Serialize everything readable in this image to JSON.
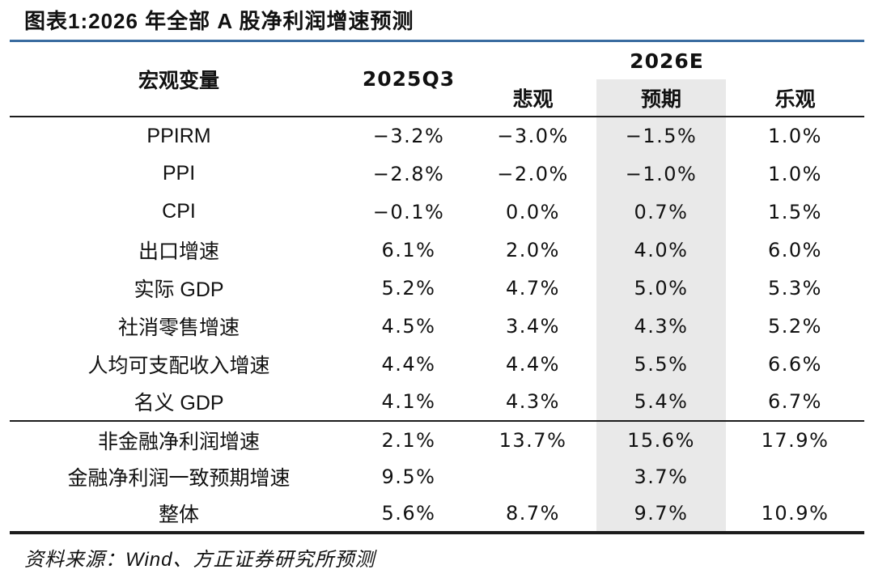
{
  "figure": {
    "title": "图表1:2026 年全部 A 股净利润增速预测",
    "source": "资料来源：Wind、方正证券研究所预测"
  },
  "colors": {
    "accent_rule": "#3a6ca0",
    "highlight": "#e9e9e9",
    "rule": "#1c1c1c",
    "text": "#111111"
  },
  "chart_data": {
    "type": "table",
    "title": "图表1:2026 年全部 A 股净利润增速预测",
    "header": {
      "macro_col": "宏观变量",
      "period_col": "2025Q3",
      "group_col": "2026E",
      "sub_cols": [
        "悲观",
        "预期",
        "乐观"
      ]
    },
    "highlighted_sub_col": "预期",
    "rows": [
      {
        "label": "PPIRM",
        "values": [
          "−3.2%",
          "−3.0%",
          "−1.5%",
          "1.0%"
        ]
      },
      {
        "label": "PPI",
        "values": [
          "−2.8%",
          "−2.0%",
          "−1.0%",
          "1.0%"
        ]
      },
      {
        "label": "CPI",
        "values": [
          "−0.1%",
          "0.0%",
          "0.7%",
          "1.5%"
        ]
      },
      {
        "label": "出口增速",
        "values": [
          "6.1%",
          "2.0%",
          "4.0%",
          "6.0%"
        ]
      },
      {
        "label": "实际 GDP",
        "values": [
          "5.2%",
          "4.7%",
          "5.0%",
          "5.3%"
        ]
      },
      {
        "label": "社消零售增速",
        "values": [
          "4.5%",
          "3.4%",
          "4.3%",
          "5.2%"
        ]
      },
      {
        "label": "人均可支配收入增速",
        "values": [
          "4.4%",
          "4.4%",
          "5.5%",
          "6.6%"
        ]
      },
      {
        "label": "名义 GDP",
        "values": [
          "4.1%",
          "4.3%",
          "5.4%",
          "6.7%"
        ]
      },
      {
        "label": "非金融净利润增速",
        "values": [
          "2.1%",
          "13.7%",
          "15.6%",
          "17.9%"
        ]
      },
      {
        "label": "金融净利润一致预期增速",
        "values": [
          "9.5%",
          "",
          "3.7%",
          ""
        ]
      },
      {
        "label": "整体",
        "values": [
          "5.6%",
          "8.7%",
          "9.7%",
          "10.9%"
        ]
      }
    ]
  }
}
